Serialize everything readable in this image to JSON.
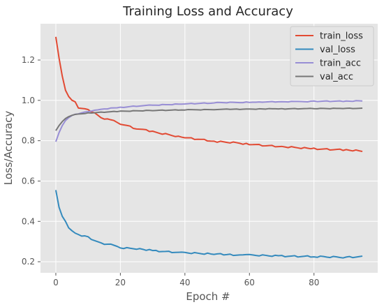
{
  "chart_data": {
    "type": "line",
    "title": "Training Loss and Accuracy",
    "xlabel": "Epoch #",
    "ylabel": "Loss/Accuracy",
    "xlim": [
      -4.75,
      99.75
    ],
    "ylim": [
      0.145,
      1.38
    ],
    "xticks": [
      0,
      20,
      40,
      60,
      80
    ],
    "yticks": [
      0.2,
      0.4,
      0.6,
      0.8,
      1.0,
      1.2
    ],
    "grid": true,
    "legend_position": "top-right",
    "background": "#e5e5e5",
    "series": [
      {
        "name": "train_loss",
        "color": "#e24a33",
        "anchors": [
          [
            0,
            1.315
          ],
          [
            1,
            1.21
          ],
          [
            2,
            1.12
          ],
          [
            3,
            1.05
          ],
          [
            4,
            1.02
          ],
          [
            5,
            1.0
          ],
          [
            6,
            0.99
          ],
          [
            7,
            0.965
          ],
          [
            10,
            0.955
          ],
          [
            12,
            0.935
          ],
          [
            14,
            0.915
          ],
          [
            16,
            0.905
          ],
          [
            18,
            0.9
          ],
          [
            20,
            0.885
          ],
          [
            25,
            0.86
          ],
          [
            30,
            0.845
          ],
          [
            35,
            0.83
          ],
          [
            40,
            0.815
          ],
          [
            45,
            0.805
          ],
          [
            50,
            0.795
          ],
          [
            55,
            0.79
          ],
          [
            60,
            0.783
          ],
          [
            65,
            0.775
          ],
          [
            70,
            0.77
          ],
          [
            75,
            0.765
          ],
          [
            80,
            0.76
          ],
          [
            85,
            0.757
          ],
          [
            90,
            0.755
          ],
          [
            95,
            0.748
          ]
        ],
        "noise": 0.004
      },
      {
        "name": "val_loss",
        "color": "#348abd",
        "anchors": [
          [
            0,
            0.555
          ],
          [
            1,
            0.47
          ],
          [
            2,
            0.425
          ],
          [
            3,
            0.4
          ],
          [
            4,
            0.37
          ],
          [
            5,
            0.35
          ],
          [
            6,
            0.34
          ],
          [
            8,
            0.33
          ],
          [
            10,
            0.32
          ],
          [
            12,
            0.305
          ],
          [
            14,
            0.29
          ],
          [
            18,
            0.285
          ],
          [
            20,
            0.27
          ],
          [
            25,
            0.265
          ],
          [
            30,
            0.255
          ],
          [
            35,
            0.25
          ],
          [
            40,
            0.245
          ],
          [
            45,
            0.24
          ],
          [
            50,
            0.237
          ],
          [
            55,
            0.235
          ],
          [
            60,
            0.232
          ],
          [
            65,
            0.23
          ],
          [
            70,
            0.228
          ],
          [
            75,
            0.226
          ],
          [
            80,
            0.225
          ],
          [
            85,
            0.224
          ],
          [
            90,
            0.222
          ],
          [
            95,
            0.225
          ]
        ],
        "noise": 0.004
      },
      {
        "name": "train_acc",
        "color": "#988ed5",
        "anchors": [
          [
            0,
            0.795
          ],
          [
            1,
            0.84
          ],
          [
            2,
            0.875
          ],
          [
            3,
            0.9
          ],
          [
            4,
            0.915
          ],
          [
            5,
            0.925
          ],
          [
            7,
            0.935
          ],
          [
            10,
            0.945
          ],
          [
            15,
            0.958
          ],
          [
            20,
            0.965
          ],
          [
            25,
            0.972
          ],
          [
            30,
            0.976
          ],
          [
            40,
            0.983
          ],
          [
            50,
            0.988
          ],
          [
            60,
            0.991
          ],
          [
            70,
            0.993
          ],
          [
            80,
            0.995
          ],
          [
            90,
            0.996
          ],
          [
            95,
            0.997
          ]
        ],
        "noise": 0.002
      },
      {
        "name": "val_acc",
        "color": "#777777",
        "anchors": [
          [
            0,
            0.85
          ],
          [
            1,
            0.875
          ],
          [
            2,
            0.895
          ],
          [
            3,
            0.91
          ],
          [
            4,
            0.92
          ],
          [
            5,
            0.927
          ],
          [
            7,
            0.932
          ],
          [
            10,
            0.937
          ],
          [
            15,
            0.942
          ],
          [
            20,
            0.946
          ],
          [
            30,
            0.95
          ],
          [
            40,
            0.953
          ],
          [
            50,
            0.955
          ],
          [
            60,
            0.957
          ],
          [
            70,
            0.958
          ],
          [
            80,
            0.959
          ],
          [
            90,
            0.96
          ],
          [
            95,
            0.96
          ]
        ],
        "noise": 0.0015
      }
    ]
  }
}
